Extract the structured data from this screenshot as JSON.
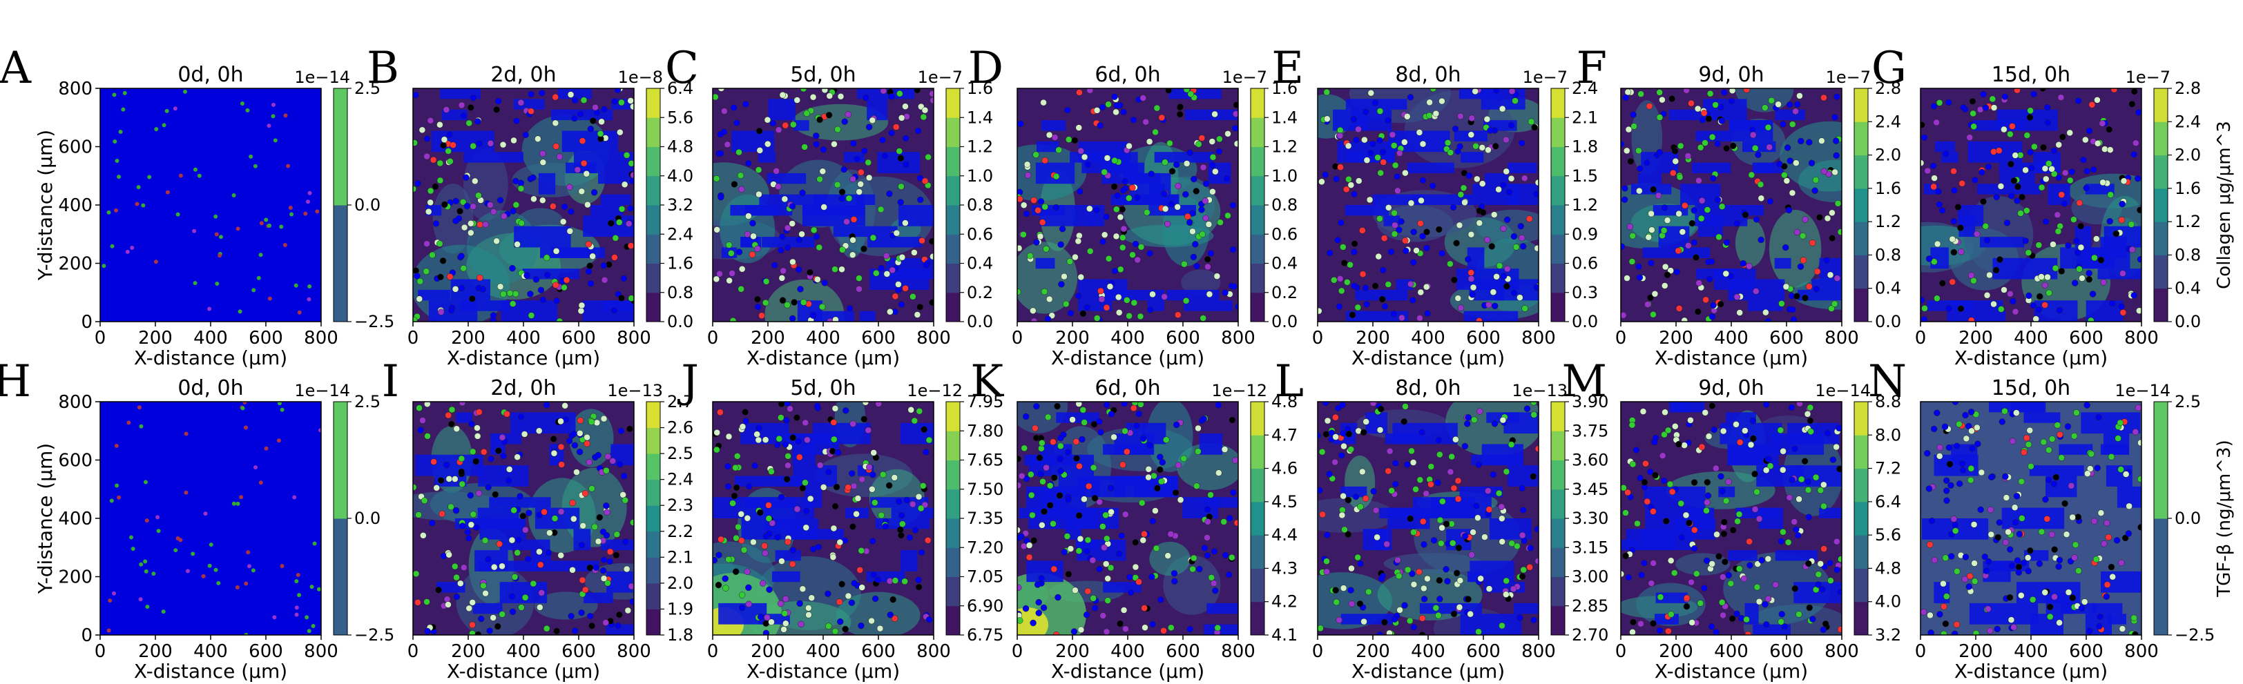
{
  "figure": {
    "cbar_labels": {
      "top": "Collagen $\\mu g/\\mu m^3$",
      "bottom": "TGF-β ($ng/\\mu m^3$)"
    },
    "colormap_stops": [
      "#440154",
      "#3b528b",
      "#21918c",
      "#5ec962",
      "#fde725"
    ],
    "agent_colors": {
      "fibroblast": "#0000ee",
      "myofibroblast": "#ff3333",
      "macrophage": "#9933cc",
      "neutrophil": "#33cc33",
      "debris": "#000000",
      "monocyte": "#d4f0c8"
    }
  },
  "chart_data": [
    {
      "type": "heatmap",
      "panel": "A",
      "title": "0d, 0h",
      "xlabel": "X-distance ($\\mu m$)",
      "ylabel": "Y-distance ($\\mu m$)",
      "xticks": [
        "0",
        "200",
        "400",
        "600",
        "800"
      ],
      "yticks": [
        "0",
        "200",
        "400",
        "600",
        "800"
      ],
      "xlim": [
        0,
        800
      ],
      "ylim": [
        0,
        800
      ],
      "colorbar": {
        "ticks": [
          "−2.5",
          "0.0",
          "2.5"
        ],
        "exponent": "1e−14"
      }
    },
    {
      "type": "heatmap",
      "panel": "B",
      "title": "2d, 0h",
      "xlabel": "X-distance ($\\mu m$)",
      "xticks": [
        "0",
        "200",
        "400",
        "600",
        "800"
      ],
      "xlim": [
        0,
        800
      ],
      "ylim": [
        0,
        800
      ],
      "colorbar": {
        "ticks": [
          "0.0",
          "0.8",
          "1.6",
          "2.4",
          "3.2",
          "4.0",
          "4.8",
          "5.6",
          "6.4"
        ],
        "exponent": "1e−8"
      }
    },
    {
      "type": "heatmap",
      "panel": "C",
      "title": "5d, 0h",
      "xlabel": "X-distance ($\\mu m$)",
      "xticks": [
        "0",
        "200",
        "400",
        "600",
        "800"
      ],
      "xlim": [
        0,
        800
      ],
      "ylim": [
        0,
        800
      ],
      "colorbar": {
        "ticks": [
          "0.0",
          "0.2",
          "0.4",
          "0.6",
          "0.8",
          "1.0",
          "1.2",
          "1.4",
          "1.6"
        ],
        "exponent": "1e−7"
      }
    },
    {
      "type": "heatmap",
      "panel": "D",
      "title": "6d, 0h",
      "xlabel": "X-distance ($\\mu m$)",
      "xticks": [
        "0",
        "200",
        "400",
        "600",
        "800"
      ],
      "xlim": [
        0,
        800
      ],
      "ylim": [
        0,
        800
      ],
      "colorbar": {
        "ticks": [
          "0.0",
          "0.2",
          "0.4",
          "0.6",
          "0.8",
          "1.0",
          "1.2",
          "1.4",
          "1.6"
        ],
        "exponent": "1e−7"
      }
    },
    {
      "type": "heatmap",
      "panel": "E",
      "title": "8d, 0h",
      "xlabel": "X-distance ($\\mu m$)",
      "xticks": [
        "0",
        "200",
        "400",
        "600",
        "800"
      ],
      "xlim": [
        0,
        800
      ],
      "ylim": [
        0,
        800
      ],
      "colorbar": {
        "ticks": [
          "0.0",
          "0.3",
          "0.6",
          "0.9",
          "1.2",
          "1.5",
          "1.8",
          "2.1",
          "2.4"
        ],
        "exponent": "1e−7"
      }
    },
    {
      "type": "heatmap",
      "panel": "F",
      "title": "9d, 0h",
      "xlabel": "X-distance ($\\mu m$)",
      "xticks": [
        "0",
        "200",
        "400",
        "600",
        "800"
      ],
      "xlim": [
        0,
        800
      ],
      "ylim": [
        0,
        800
      ],
      "colorbar": {
        "ticks": [
          "0.0",
          "0.4",
          "0.8",
          "1.2",
          "1.6",
          "2.0",
          "2.4",
          "2.8"
        ],
        "exponent": "1e−7"
      }
    },
    {
      "type": "heatmap",
      "panel": "G",
      "title": "15d, 0h",
      "xlabel": "X-distance ($\\mu m$)",
      "xticks": [
        "0",
        "200",
        "400",
        "600",
        "800"
      ],
      "xlim": [
        0,
        800
      ],
      "ylim": [
        0,
        800
      ],
      "colorbar": {
        "ticks": [
          "0.0",
          "0.4",
          "0.8",
          "1.2",
          "1.6",
          "2.0",
          "2.4",
          "2.8"
        ],
        "exponent": "1e−7"
      }
    },
    {
      "type": "heatmap",
      "panel": "H",
      "title": "0d, 0h",
      "xlabel": "X-distance ($\\mu m$)",
      "ylabel": "Y-distance ($\\mu m$)",
      "xticks": [
        "0",
        "200",
        "400",
        "600",
        "800"
      ],
      "yticks": [
        "0",
        "200",
        "400",
        "600",
        "800"
      ],
      "xlim": [
        0,
        800
      ],
      "ylim": [
        0,
        800
      ],
      "colorbar": {
        "ticks": [
          "−2.5",
          "0.0",
          "2.5"
        ],
        "exponent": "1e−14"
      }
    },
    {
      "type": "heatmap",
      "panel": "I",
      "title": "2d, 0h",
      "xlabel": "X-distance ($\\mu m$)",
      "xticks": [
        "0",
        "200",
        "400",
        "600",
        "800"
      ],
      "xlim": [
        0,
        800
      ],
      "ylim": [
        0,
        800
      ],
      "colorbar": {
        "ticks": [
          "1.8",
          "1.9",
          "2.0",
          "2.1",
          "2.2",
          "2.3",
          "2.4",
          "2.5",
          "2.6",
          "2.7"
        ],
        "exponent": "1e−13"
      }
    },
    {
      "type": "heatmap",
      "panel": "J",
      "title": "5d, 0h",
      "xlabel": "X-distance ($\\mu m$)",
      "xticks": [
        "0",
        "200",
        "400",
        "600",
        "800"
      ],
      "xlim": [
        0,
        800
      ],
      "ylim": [
        0,
        800
      ],
      "colorbar": {
        "ticks": [
          "6.75",
          "6.90",
          "7.05",
          "7.20",
          "7.35",
          "7.50",
          "7.65",
          "7.80",
          "7.95"
        ],
        "exponent": "1e−12"
      }
    },
    {
      "type": "heatmap",
      "panel": "K",
      "title": "6d, 0h",
      "xlabel": "X-distance ($\\mu m$)",
      "xticks": [
        "0",
        "200",
        "400",
        "600",
        "800"
      ],
      "xlim": [
        0,
        800
      ],
      "ylim": [
        0,
        800
      ],
      "colorbar": {
        "ticks": [
          "4.1",
          "4.2",
          "4.3",
          "4.4",
          "4.5",
          "4.6",
          "4.7",
          "4.8"
        ],
        "exponent": "1e−12"
      }
    },
    {
      "type": "heatmap",
      "panel": "L",
      "title": "8d, 0h",
      "xlabel": "X-distance ($\\mu m$)",
      "xticks": [
        "0",
        "200",
        "400",
        "600",
        "800"
      ],
      "xlim": [
        0,
        800
      ],
      "ylim": [
        0,
        800
      ],
      "colorbar": {
        "ticks": [
          "2.70",
          "2.85",
          "3.00",
          "3.15",
          "3.30",
          "3.45",
          "3.60",
          "3.75",
          "3.90"
        ],
        "exponent": "1e−13"
      }
    },
    {
      "type": "heatmap",
      "panel": "M",
      "title": "9d, 0h",
      "xlabel": "X-distance ($\\mu m$)",
      "xticks": [
        "0",
        "200",
        "400",
        "600",
        "800"
      ],
      "xlim": [
        0,
        800
      ],
      "ylim": [
        0,
        800
      ],
      "colorbar": {
        "ticks": [
          "3.2",
          "4.0",
          "4.8",
          "5.6",
          "6.4",
          "7.2",
          "8.0",
          "8.8"
        ],
        "exponent": "1e−14"
      }
    },
    {
      "type": "heatmap",
      "panel": "N",
      "title": "15d, 0h",
      "xlabel": "X-distance ($\\mu m$)",
      "xticks": [
        "0",
        "200",
        "400",
        "600",
        "800"
      ],
      "xlim": [
        0,
        800
      ],
      "ylim": [
        0,
        800
      ],
      "colorbar": {
        "ticks": [
          "−2.5",
          "0.0",
          "2.5"
        ],
        "exponent": "1e−14"
      }
    }
  ]
}
